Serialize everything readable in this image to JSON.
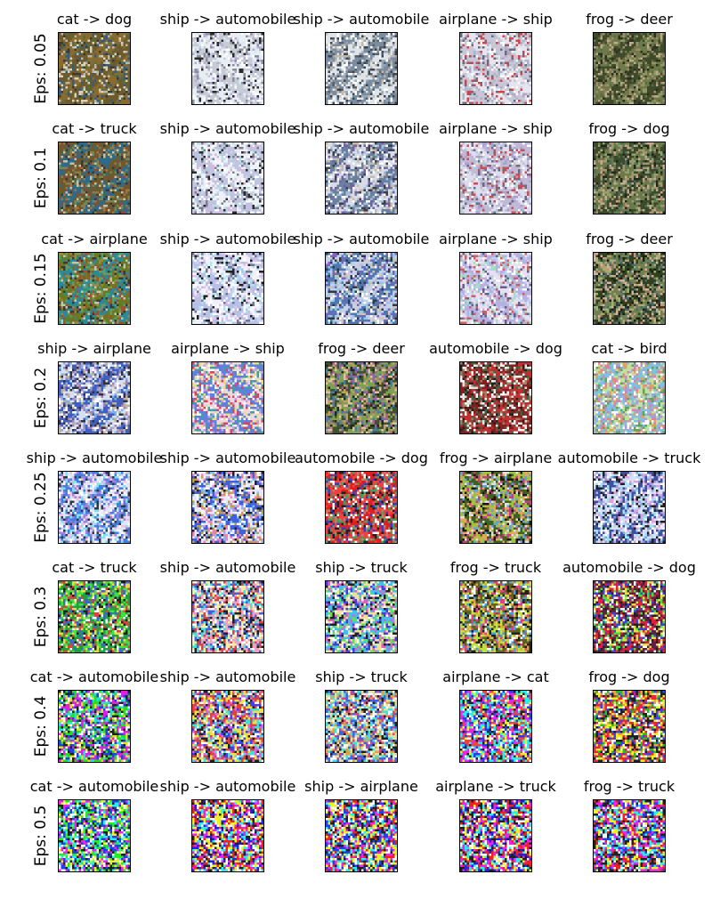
{
  "rows": [
    {
      "label": "Eps: 0.05",
      "cells": [
        {
          "title": "cat -> dog",
          "palette": [
            "#6e5a2a",
            "#8a6b2f",
            "#2f5d8a",
            "#b9b7a8",
            "#3c3b33",
            "#d8d2c0",
            "#55703f"
          ]
        },
        {
          "title": "ship -> automobile",
          "palette": [
            "#e9eef5",
            "#c6cbd6",
            "#ffffff",
            "#8a8f9c",
            "#2b2b2b",
            "#b4a9d8",
            "#d9e8f0"
          ]
        },
        {
          "title": "ship -> automobile",
          "palette": [
            "#dfe4e8",
            "#7a8da0",
            "#3a4656",
            "#c4b8a6",
            "#9aa8b5",
            "#ffffff",
            "#5a6070"
          ]
        },
        {
          "title": "airplane -> ship",
          "palette": [
            "#e6e4ee",
            "#c9c6d8",
            "#d04545",
            "#ffffff",
            "#6b6a7a",
            "#b0aac4",
            "#a8b8c8"
          ]
        },
        {
          "title": "frog -> deer",
          "palette": [
            "#3f4a2b",
            "#6f7a4a",
            "#2a2f1f",
            "#a08a6a",
            "#c2a88a",
            "#5b6a3c",
            "#8f9a68"
          ]
        }
      ]
    },
    {
      "label": "Eps: 0.1",
      "cells": [
        {
          "title": "cat -> truck",
          "palette": [
            "#6a5a2e",
            "#2f6a8a",
            "#9a7a3a",
            "#c9c0a0",
            "#3a3a30",
            "#8a4a3a",
            "#6a8a5a"
          ]
        },
        {
          "title": "ship -> automobile",
          "palette": [
            "#eef0f8",
            "#c0c4e0",
            "#ffffff",
            "#7a7f90",
            "#2a2a2a",
            "#d8b8e0",
            "#b8e0e8"
          ]
        },
        {
          "title": "ship -> automobile",
          "palette": [
            "#d8dce8",
            "#6a80a0",
            "#3a4050",
            "#c8b8a8",
            "#a0c0d8",
            "#ffffff",
            "#7060a0"
          ]
        },
        {
          "title": "airplane -> ship",
          "palette": [
            "#e0dcef",
            "#c0b8d8",
            "#c85050",
            "#ffffff",
            "#6a6a80",
            "#a8a0d0",
            "#b8c8d0"
          ]
        },
        {
          "title": "frog -> dog",
          "palette": [
            "#3a4a2a",
            "#6a7a48",
            "#20281a",
            "#b09070",
            "#c8a890",
            "#4a6a5a",
            "#90a070"
          ]
        }
      ]
    },
    {
      "label": "Eps: 0.15",
      "cells": [
        {
          "title": "cat -> airplane",
          "palette": [
            "#6a7a20",
            "#2a8a9a",
            "#9a8a40",
            "#c0c8b0",
            "#3a3a3a",
            "#a05030",
            "#50a070"
          ]
        },
        {
          "title": "ship -> automobile",
          "palette": [
            "#f0f0f8",
            "#b8c0e8",
            "#ffffff",
            "#707890",
            "#202020",
            "#e0c0f0",
            "#a8e8f0"
          ]
        },
        {
          "title": "ship -> automobile",
          "palette": [
            "#c8d0e8",
            "#5078b0",
            "#303848",
            "#d0c0b0",
            "#90c8e8",
            "#ffffff",
            "#8060c0"
          ]
        },
        {
          "title": "airplane -> ship",
          "palette": [
            "#e8e0f0",
            "#b8b0e0",
            "#d06060",
            "#ffffff",
            "#606088",
            "#a0e0c0",
            "#c0d0f0"
          ]
        },
        {
          "title": "frog -> deer",
          "palette": [
            "#304020",
            "#708050",
            "#181e10",
            "#c09878",
            "#d8b0a0",
            "#406a70",
            "#a0b070"
          ]
        }
      ]
    },
    {
      "label": "Eps: 0.2",
      "cells": [
        {
          "title": "ship -> airplane",
          "palette": [
            "#d8e0f0",
            "#4060c0",
            "#303040",
            "#c0b0a0",
            "#80b0e0",
            "#ffffff",
            "#a080c0"
          ]
        },
        {
          "title": "airplane -> ship",
          "palette": [
            "#f0d8e0",
            "#6080e0",
            "#e04060",
            "#ffffff",
            "#40a0a0",
            "#e0e080",
            "#c0a0e0"
          ]
        },
        {
          "title": "frog -> deer",
          "palette": [
            "#405030",
            "#80a050",
            "#202818",
            "#c0a060",
            "#e0c0a0",
            "#4080a0",
            "#a060a0"
          ]
        },
        {
          "title": "automobile -> dog",
          "palette": [
            "#802020",
            "#c03030",
            "#202020",
            "#e0e0e0",
            "#406040",
            "#a08060",
            "#ffffff"
          ]
        },
        {
          "title": "cat -> bird",
          "palette": [
            "#c0e0a0",
            "#80c0e0",
            "#e0a060",
            "#ffffff",
            "#60a060",
            "#e080a0",
            "#a0a0e0"
          ]
        }
      ]
    },
    {
      "label": "Eps: 0.25",
      "cells": [
        {
          "title": "ship -> automobile",
          "palette": [
            "#e0e8f8",
            "#4080e0",
            "#303848",
            "#f0c0e0",
            "#80e0f0",
            "#ffffff",
            "#a080e0"
          ]
        },
        {
          "title": "ship -> automobile",
          "palette": [
            "#e8e8f8",
            "#4060e0",
            "#202030",
            "#f080c0",
            "#80c0f0",
            "#ffffff",
            "#c0a040"
          ]
        },
        {
          "title": "automobile -> dog",
          "palette": [
            "#e02020",
            "#f04040",
            "#202020",
            "#ffffff",
            "#40a060",
            "#c08060",
            "#3040c0"
          ]
        },
        {
          "title": "frog -> airplane",
          "palette": [
            "#406020",
            "#a0c040",
            "#181810",
            "#e0e0e0",
            "#c04080",
            "#60a0e0",
            "#f0a060"
          ]
        },
        {
          "title": "automobile -> truck",
          "palette": [
            "#d8e0f8",
            "#4050a0",
            "#202020",
            "#ffffff",
            "#80a0e0",
            "#e0a0e0",
            "#a0e0f0"
          ]
        }
      ]
    },
    {
      "label": "Eps: 0.3",
      "cells": [
        {
          "title": "cat -> truck",
          "palette": [
            "#20a040",
            "#40e040",
            "#e04040",
            "#ffffff",
            "#202020",
            "#4060e0",
            "#e0e040"
          ]
        },
        {
          "title": "ship -> automobile",
          "palette": [
            "#f0f0a0",
            "#f0a0c0",
            "#4060e0",
            "#ffffff",
            "#202020",
            "#40e0e0",
            "#e04040"
          ]
        },
        {
          "title": "ship -> truck",
          "palette": [
            "#f0e0a0",
            "#40c0f0",
            "#e060c0",
            "#ffffff",
            "#202020",
            "#60e060",
            "#4040e0"
          ]
        },
        {
          "title": "frog -> truck",
          "palette": [
            "#606020",
            "#c0e040",
            "#202020",
            "#ffffff",
            "#e04080",
            "#40a0e0",
            "#e0a040"
          ]
        },
        {
          "title": "automobile -> dog",
          "palette": [
            "#602040",
            "#e02040",
            "#202020",
            "#ffffff",
            "#40e040",
            "#4040e0",
            "#e0e040"
          ]
        }
      ]
    },
    {
      "label": "Eps: 0.4",
      "cells": [
        {
          "title": "cat -> automobile",
          "palette": [
            "#20e020",
            "#e020e0",
            "#202020",
            "#ffffff",
            "#2040e0",
            "#e0e020",
            "#20e0e0"
          ]
        },
        {
          "title": "ship -> automobile",
          "palette": [
            "#f0e040",
            "#e04040",
            "#4040f0",
            "#ffffff",
            "#202020",
            "#40e0e0",
            "#e060e0"
          ]
        },
        {
          "title": "ship -> truck",
          "palette": [
            "#e0e0a0",
            "#4060f0",
            "#202020",
            "#ffffff",
            "#e0a040",
            "#40e0e0",
            "#e04080"
          ]
        },
        {
          "title": "airplane -> cat",
          "palette": [
            "#f020f0",
            "#20f0f0",
            "#202020",
            "#ffffff",
            "#f0f020",
            "#2040f0",
            "#f04040"
          ]
        },
        {
          "title": "frog -> dog",
          "palette": [
            "#202020",
            "#f02040",
            "#f0f020",
            "#ffffff",
            "#20c020",
            "#4040f0",
            "#f0a040"
          ]
        }
      ]
    },
    {
      "label": "Eps: 0.5",
      "cells": [
        {
          "title": "cat -> automobile",
          "palette": [
            "#20f020",
            "#2040f0",
            "#202020",
            "#ffffff",
            "#f020f0",
            "#f0f020",
            "#20f0f0"
          ]
        },
        {
          "title": "ship -> automobile",
          "palette": [
            "#f0f020",
            "#f02020",
            "#2020f0",
            "#ffffff",
            "#202020",
            "#20f0f0",
            "#f020f0"
          ]
        },
        {
          "title": "ship -> airplane",
          "palette": [
            "#f0f020",
            "#2040f0",
            "#202020",
            "#ffffff",
            "#f02020",
            "#20f0f0",
            "#f020f0"
          ]
        },
        {
          "title": "airplane -> truck",
          "palette": [
            "#f02020",
            "#20f0f0",
            "#202020",
            "#ffffff",
            "#2020f0",
            "#f0f020",
            "#f020f0"
          ]
        },
        {
          "title": "frog -> truck",
          "palette": [
            "#202020",
            "#f020f0",
            "#20f0f0",
            "#ffffff",
            "#2040f0",
            "#f0f020",
            "#f02020"
          ]
        }
      ]
    }
  ]
}
